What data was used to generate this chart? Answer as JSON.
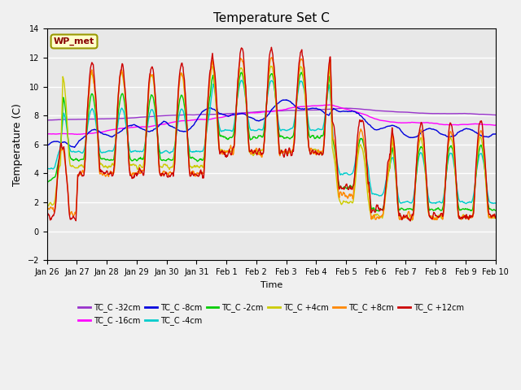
{
  "title": "Temperature Set C",
  "xlabel": "Time",
  "ylabel": "Temperature (C)",
  "ylim": [
    -2,
    14
  ],
  "plot_bg_color": "#e8e8e8",
  "fig_bg_color": "#f0f0f0",
  "annotation_text": "WP_met",
  "annotation_box_color": "#ffffcc",
  "annotation_border_color": "#999900",
  "annotation_text_color": "#880000",
  "series_order": [
    "TC_C -32cm",
    "TC_C -16cm",
    "TC_C -8cm",
    "TC_C -4cm",
    "TC_C -2cm",
    "TC_C +4cm",
    "TC_C +8cm",
    "TC_C +12cm"
  ],
  "series_colors": {
    "TC_C -32cm": "#9933cc",
    "TC_C -16cm": "#ff00ff",
    "TC_C -8cm": "#0000dd",
    "TC_C -4cm": "#00cccc",
    "TC_C -2cm": "#00cc00",
    "TC_C +4cm": "#cccc00",
    "TC_C +8cm": "#ff8800",
    "TC_C +12cm": "#cc0000"
  },
  "xtick_labels": [
    "Jan 26",
    "Jan 27",
    "Jan 28",
    "Jan 29",
    "Jan 30",
    "Jan 31",
    "Feb 1",
    "Feb 2",
    "Feb 3",
    "Feb 4",
    "Feb 5",
    "Feb 6",
    "Feb 7",
    "Feb 8",
    "Feb 9",
    "Feb 10"
  ],
  "legend_order": [
    "TC_C -32cm",
    "TC_C -16cm",
    "TC_C -8cm",
    "TC_C -4cm",
    "TC_C -2cm",
    "TC_C +4cm",
    "TC_C +8cm",
    "TC_C +12cm"
  ],
  "legend_ncol": 6,
  "title_fontsize": 11,
  "tick_fontsize": 7,
  "ylabel_fontsize": 9,
  "xlabel_fontsize": 8,
  "lw": 1.0
}
